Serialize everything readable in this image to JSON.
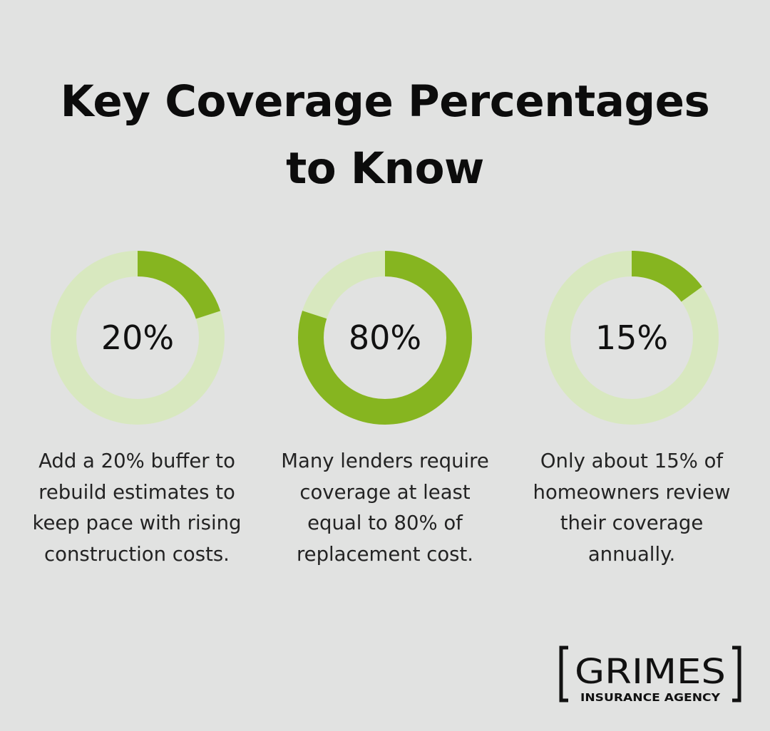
{
  "title": {
    "line1": "Key Coverage Percentages",
    "line2": "to Know"
  },
  "colors": {
    "background": "#e1e2e1",
    "ring_fill": "#86b520",
    "ring_track": "#d8e8bf",
    "text": "#111111"
  },
  "chart_data": {
    "type": "pie",
    "style": "donut",
    "values": [
      20,
      80,
      15
    ],
    "labels": [
      "20%",
      "80%",
      "15%"
    ],
    "descriptions": [
      "Add a 20% buffer to rebuild estimates to keep pace with rising construction costs.",
      "Many lenders require coverage at least equal to 80% of replacement cost.",
      "Only about 15% of homeowners review their coverage annually."
    ]
  },
  "logo": {
    "name": "GRIMES",
    "tagline": "INSURANCE AGENCY"
  }
}
